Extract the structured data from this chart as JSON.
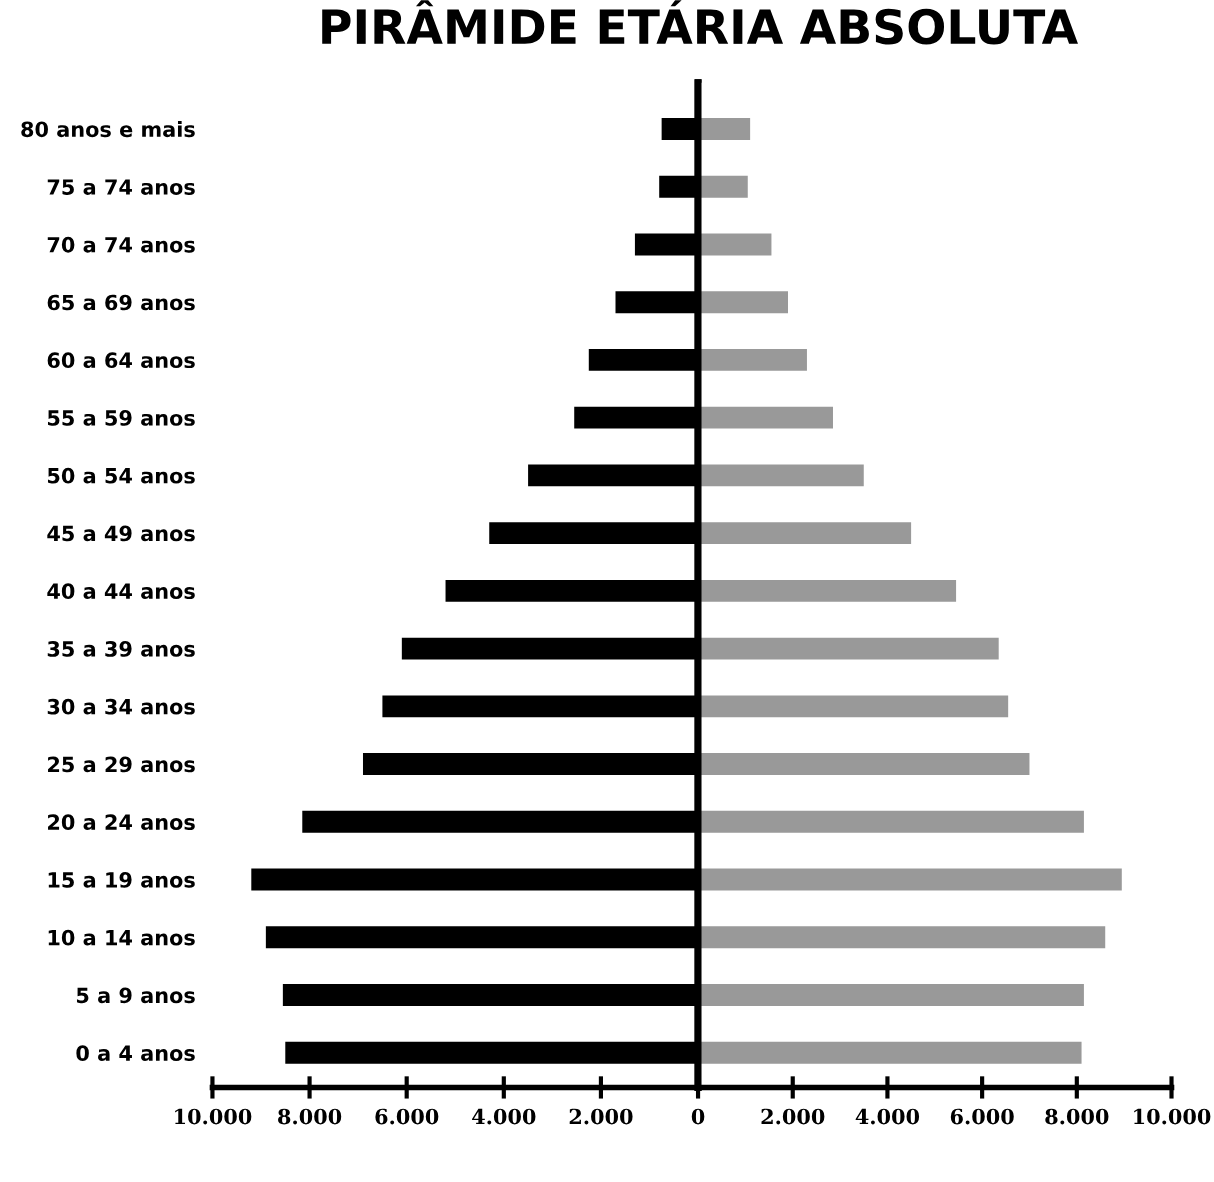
{
  "chart_data": [
    {
      "type": "bar",
      "orientation": "horizontal",
      "title": "PIRÂMIDE ETÁRIA ABSOLUTA",
      "categories": [
        "80 anos e mais",
        "75 a 74 anos",
        "70 a 74 anos",
        "65 a 69 anos",
        "60 a 64 anos",
        "55 a 59 anos",
        "50 a 54 anos",
        "45 a 49 anos",
        "40 a 44 anos",
        "35 a 39 anos",
        "30 a 34 anos",
        "25 a 29 anos",
        "20 a 24 anos",
        "15 a 19 anos",
        "10 a 14 anos",
        "5 a 9 anos",
        "0 a 4 anos"
      ],
      "series": [
        {
          "color": "#000000",
          "values": [
            750,
            800,
            1300,
            1700,
            2250,
            2550,
            3500,
            4300,
            5200,
            6100,
            6500,
            6900,
            8150,
            9200,
            8900,
            8550,
            8500
          ]
        }
      ],
      "xlim": [
        10000,
        0
      ],
      "xticks": [
        {
          "value": 10000,
          "label": "10.000"
        },
        {
          "value": 8000,
          "label": "8.000"
        },
        {
          "value": 6000,
          "label": "6.000"
        },
        {
          "value": 4000,
          "label": "4.000"
        },
        {
          "value": 2000,
          "label": "2.000"
        }
      ],
      "grid": false
    },
    {
      "type": "bar",
      "orientation": "horizontal",
      "categories": [
        null,
        null,
        null,
        null,
        null,
        null,
        null,
        null,
        null,
        null,
        null,
        null,
        null,
        null,
        null,
        null,
        null
      ],
      "series": [
        {
          "color": "#999999",
          "values": [
            1100,
            1050,
            1550,
            1900,
            2300,
            2850,
            3500,
            4500,
            5450,
            6350,
            6550,
            7000,
            8150,
            8950,
            8600,
            8150,
            8100
          ]
        }
      ],
      "xlim": [
        0,
        10000
      ],
      "xticks": [
        0,
        {
          "value": 2000,
          "label": "2.000"
        },
        {
          "value": 4000,
          "label": "4.000"
        },
        {
          "value": 6000,
          "label": "6.000"
        },
        {
          "value": 8000,
          "label": "8.000"
        },
        {
          "value": 10000,
          "label": "10.000"
        }
      ],
      "tick_labels": "x",
      "grid": false
    }
  ]
}
